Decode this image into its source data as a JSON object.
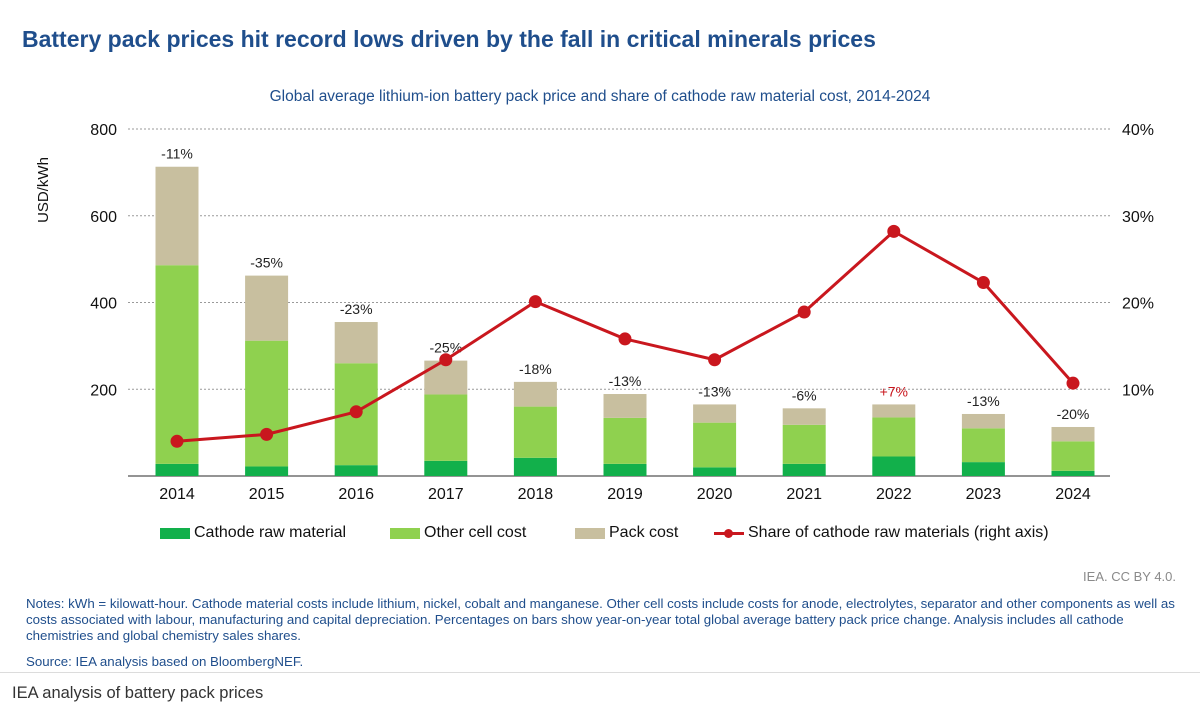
{
  "header": {
    "title": "Battery pack prices hit record lows driven by the fall in critical minerals prices"
  },
  "chart_data": {
    "type": "bar",
    "subtitle": "Global average lithium-ion battery pack price and share of cathode raw material cost, 2014-2024",
    "categories": [
      "2014",
      "2015",
      "2016",
      "2017",
      "2018",
      "2019",
      "2020",
      "2021",
      "2022",
      "2023",
      "2024"
    ],
    "stacked_series": [
      {
        "name": "Cathode raw material",
        "color": "#12b04b",
        "values": [
          28,
          22,
          25,
          35,
          42,
          28,
          20,
          28,
          45,
          32,
          12
        ]
      },
      {
        "name": "Other cell cost",
        "color": "#8fd14f",
        "values": [
          458,
          290,
          235,
          153,
          118,
          106,
          103,
          90,
          90,
          78,
          68
        ]
      },
      {
        "name": "Pack cost",
        "color": "#c8bf9f",
        "values": [
          227,
          150,
          95,
          78,
          57,
          55,
          42,
          38,
          30,
          33,
          33
        ]
      }
    ],
    "line_series": {
      "name": "Share of cathode raw materials (right axis)",
      "color": "#c9171e",
      "axis": "right",
      "values": [
        4.0,
        4.8,
        7.4,
        13.4,
        20.1,
        15.8,
        13.4,
        18.9,
        28.2,
        22.3,
        10.7
      ]
    },
    "bar_labels": [
      "-11%",
      "-35%",
      "-23%",
      "-25%",
      "-18%",
      "-13%",
      "-13%",
      "-6%",
      "+7%",
      "-13%",
      "-20%"
    ],
    "bar_label_colors": [
      "#222222",
      "#222222",
      "#222222",
      "#222222",
      "#222222",
      "#222222",
      "#222222",
      "#222222",
      "#c9171e",
      "#222222",
      "#222222"
    ],
    "ylabel": "USD/kWh",
    "ylim": [
      0,
      800
    ],
    "yticks": [
      200,
      400,
      600,
      800
    ],
    "y2lim": [
      0,
      40
    ],
    "y2ticks": [
      "10%",
      "20%",
      "30%",
      "40%"
    ],
    "y2tick_values": [
      10,
      20,
      30,
      40
    ],
    "grid": "dotted",
    "legend_position": "bottom"
  },
  "credit": "IEA. CC BY 4.0.",
  "notes": "Notes: kWh = kilowatt-hour. Cathode material costs include lithium, nickel, cobalt and manganese. Other cell costs include costs for anode, electrolytes, separator and other components as well as costs associated with labour, manufacturing and capital depreciation. Percentages on bars show year-on-year total global average battery pack price change. Analysis includes all cathode chemistries and global chemistry sales shares.",
  "source": "Source: IEA analysis based on BloombergNEF.",
  "caption": "IEA analysis of battery pack prices"
}
